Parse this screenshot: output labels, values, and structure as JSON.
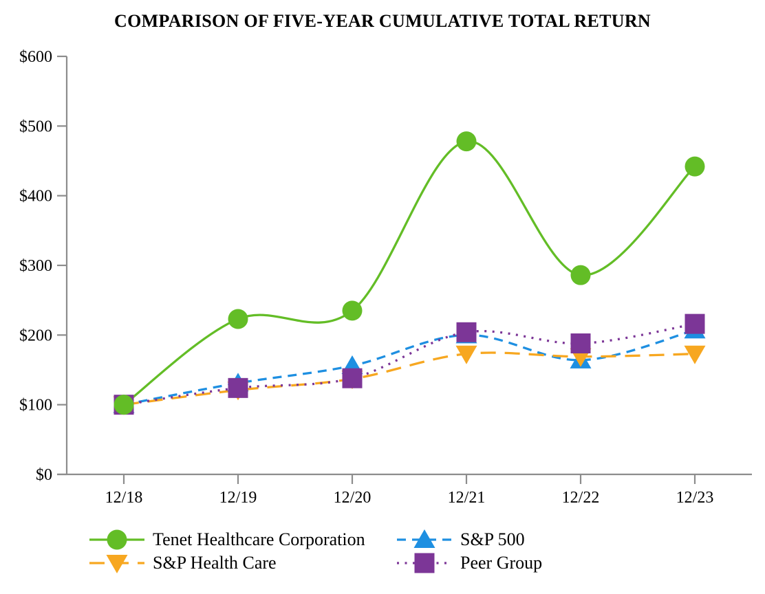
{
  "chart_data": {
    "type": "line",
    "title": "COMPARISON OF FIVE-YEAR CUMULATIVE TOTAL RETURN",
    "categories": [
      "12/18",
      "12/19",
      "12/20",
      "12/21",
      "12/22",
      "12/23"
    ],
    "series": [
      {
        "name": "Tenet Healthcare Corporation",
        "values": [
          100,
          223,
          235,
          478,
          286,
          442
        ],
        "color": "#63BD26",
        "marker": "circle",
        "line_style": "solid"
      },
      {
        "name": "S&P 500",
        "values": [
          100,
          131,
          156,
          200,
          164,
          207
        ],
        "color": "#1E8FE1",
        "marker": "triangle-up",
        "line_style": "dashed"
      },
      {
        "name": "S&P Health Care",
        "values": [
          100,
          121,
          137,
          173,
          169,
          173
        ],
        "color": "#F7A720",
        "marker": "triangle-down",
        "line_style": "long-dash"
      },
      {
        "name": "Peer Group",
        "values": [
          100,
          124,
          138,
          204,
          188,
          216
        ],
        "color": "#7C3697",
        "marker": "square",
        "line_style": "dotted"
      }
    ],
    "ylim": [
      0,
      600
    ],
    "ytick_values": [
      0,
      100,
      200,
      300,
      400,
      500,
      600
    ],
    "ytick_labels": [
      "$0",
      "$100",
      "$200",
      "$300",
      "$400",
      "$500",
      "$600"
    ],
    "xtick_labels": [
      "12/18",
      "12/19",
      "12/20",
      "12/21",
      "12/22",
      "12/23"
    ],
    "grid": false,
    "legend_position": "bottom",
    "axis_color": "#8C8C8C",
    "text_color": "#000000"
  }
}
